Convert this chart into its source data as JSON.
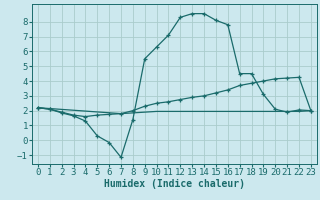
{
  "xlabel": "Humidex (Indice chaleur)",
  "background_color": "#cce8ee",
  "grid_color": "#aacccc",
  "line_color": "#1a6b6b",
  "xlim": [
    -0.5,
    23.5
  ],
  "ylim": [
    -1.6,
    9.2
  ],
  "xticks": [
    0,
    1,
    2,
    3,
    4,
    5,
    6,
    7,
    8,
    9,
    10,
    11,
    12,
    13,
    14,
    15,
    16,
    17,
    18,
    19,
    20,
    21,
    22,
    23
  ],
  "yticks": [
    -1,
    0,
    1,
    2,
    3,
    4,
    5,
    6,
    7,
    8
  ],
  "series1_x": [
    0,
    1,
    2,
    3,
    4,
    5,
    6,
    7,
    8,
    9,
    10,
    11,
    12,
    13,
    14,
    15,
    16,
    17,
    18,
    19,
    20,
    21,
    22,
    23
  ],
  "series1_y": [
    2.2,
    2.1,
    1.85,
    1.65,
    1.3,
    0.3,
    -0.15,
    -1.15,
    1.4,
    5.5,
    6.3,
    7.1,
    8.3,
    8.55,
    8.55,
    8.1,
    7.8,
    4.5,
    4.5,
    3.1,
    2.1,
    1.9,
    2.05,
    2.0
  ],
  "series2_x": [
    0,
    1,
    2,
    3,
    4,
    5,
    6,
    7,
    8,
    9,
    10,
    11,
    12,
    13,
    14,
    15,
    16,
    17,
    18,
    19,
    20,
    21,
    22,
    23
  ],
  "series2_y": [
    2.2,
    2.1,
    1.9,
    1.7,
    1.6,
    1.7,
    1.75,
    1.8,
    2.0,
    2.3,
    2.5,
    2.6,
    2.75,
    2.9,
    3.0,
    3.2,
    3.4,
    3.7,
    3.85,
    4.0,
    4.15,
    4.2,
    4.25,
    2.0
  ],
  "series3_x": [
    0,
    7,
    8,
    9,
    10,
    11,
    12,
    13,
    14,
    15,
    16,
    17,
    18,
    19,
    20,
    21,
    22,
    23
  ],
  "series3_y": [
    2.2,
    1.8,
    1.85,
    1.9,
    1.95,
    1.95,
    1.95,
    1.95,
    1.95,
    1.95,
    1.95,
    1.95,
    1.95,
    1.95,
    1.95,
    1.95,
    1.95,
    2.0
  ],
  "xlabel_fontsize": 7,
  "tick_fontsize": 6.5
}
